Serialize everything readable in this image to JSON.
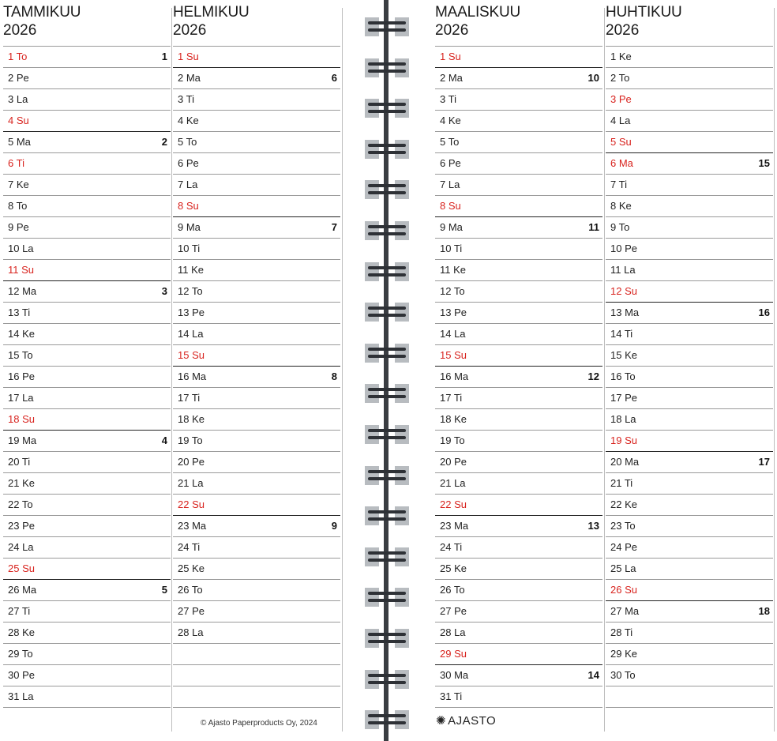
{
  "months": [
    {
      "name": "TAMMIKUU",
      "year": "2026",
      "days": [
        {
          "label": "1 To",
          "red": true,
          "week": "1"
        },
        {
          "label": "2 Pe"
        },
        {
          "label": "3 La"
        },
        {
          "label": "4 Su",
          "red": true
        },
        {
          "label": "5 Ma",
          "week": "2",
          "start": true
        },
        {
          "label": "6 Ti",
          "red": true
        },
        {
          "label": "7 Ke"
        },
        {
          "label": "8 To"
        },
        {
          "label": "9 Pe"
        },
        {
          "label": "10 La"
        },
        {
          "label": "11 Su",
          "red": true
        },
        {
          "label": "12 Ma",
          "week": "3",
          "start": true
        },
        {
          "label": "13 Ti"
        },
        {
          "label": "14 Ke"
        },
        {
          "label": "15 To"
        },
        {
          "label": "16 Pe"
        },
        {
          "label": "17 La"
        },
        {
          "label": "18 Su",
          "red": true
        },
        {
          "label": "19 Ma",
          "week": "4",
          "start": true
        },
        {
          "label": "20 Ti"
        },
        {
          "label": "21 Ke"
        },
        {
          "label": "22 To"
        },
        {
          "label": "23 Pe"
        },
        {
          "label": "24 La"
        },
        {
          "label": "25 Su",
          "red": true
        },
        {
          "label": "26 Ma",
          "week": "5",
          "start": true
        },
        {
          "label": "27 Ti"
        },
        {
          "label": "28 Ke"
        },
        {
          "label": "29 To"
        },
        {
          "label": "30 Pe"
        },
        {
          "label": "31 La"
        }
      ]
    },
    {
      "name": "HELMIKUU",
      "year": "2026",
      "days": [
        {
          "label": "1 Su",
          "red": true
        },
        {
          "label": "2 Ma",
          "week": "6",
          "start": true
        },
        {
          "label": "3 Ti"
        },
        {
          "label": "4 Ke"
        },
        {
          "label": "5 To"
        },
        {
          "label": "6 Pe"
        },
        {
          "label": "7 La"
        },
        {
          "label": "8 Su",
          "red": true
        },
        {
          "label": "9 Ma",
          "week": "7",
          "start": true
        },
        {
          "label": "10 Ti"
        },
        {
          "label": "11 Ke"
        },
        {
          "label": "12 To"
        },
        {
          "label": "13 Pe"
        },
        {
          "label": "14 La"
        },
        {
          "label": "15 Su",
          "red": true
        },
        {
          "label": "16 Ma",
          "week": "8",
          "start": true
        },
        {
          "label": "17 Ti"
        },
        {
          "label": "18 Ke"
        },
        {
          "label": "19 To"
        },
        {
          "label": "20 Pe"
        },
        {
          "label": "21 La"
        },
        {
          "label": "22 Su",
          "red": true
        },
        {
          "label": "23 Ma",
          "week": "9",
          "start": true
        },
        {
          "label": "24 Ti"
        },
        {
          "label": "25 Ke"
        },
        {
          "label": "26 To"
        },
        {
          "label": "27 Pe"
        },
        {
          "label": "28 La"
        },
        {
          "label": ""
        },
        {
          "label": ""
        },
        {
          "label": ""
        }
      ]
    },
    {
      "name": "MAALISKUU",
      "year": "2026",
      "days": [
        {
          "label": "1 Su",
          "red": true
        },
        {
          "label": "2 Ma",
          "week": "10",
          "start": true
        },
        {
          "label": "3 Ti"
        },
        {
          "label": "4 Ke"
        },
        {
          "label": "5 To"
        },
        {
          "label": "6 Pe"
        },
        {
          "label": "7 La"
        },
        {
          "label": "8 Su",
          "red": true
        },
        {
          "label": "9 Ma",
          "week": "11",
          "start": true
        },
        {
          "label": "10 Ti"
        },
        {
          "label": "11 Ke"
        },
        {
          "label": "12 To"
        },
        {
          "label": "13 Pe"
        },
        {
          "label": "14 La"
        },
        {
          "label": "15 Su",
          "red": true
        },
        {
          "label": "16 Ma",
          "week": "12",
          "start": true
        },
        {
          "label": "17 Ti"
        },
        {
          "label": "18 Ke"
        },
        {
          "label": "19 To"
        },
        {
          "label": "20 Pe"
        },
        {
          "label": "21 La"
        },
        {
          "label": "22 Su",
          "red": true
        },
        {
          "label": "23 Ma",
          "week": "13",
          "start": true
        },
        {
          "label": "24 Ti"
        },
        {
          "label": "25 Ke"
        },
        {
          "label": "26 To"
        },
        {
          "label": "27 Pe"
        },
        {
          "label": "28 La"
        },
        {
          "label": "29 Su",
          "red": true
        },
        {
          "label": "30 Ma",
          "week": "14",
          "start": true
        },
        {
          "label": "31 Ti"
        }
      ]
    },
    {
      "name": "HUHTIKUU",
      "year": "2026",
      "days": [
        {
          "label": "1 Ke"
        },
        {
          "label": "2 To"
        },
        {
          "label": "3 Pe",
          "red": true
        },
        {
          "label": "4 La"
        },
        {
          "label": "5 Su",
          "red": true
        },
        {
          "label": "6 Ma",
          "red": true,
          "week": "15",
          "start": true
        },
        {
          "label": "7 Ti"
        },
        {
          "label": "8 Ke"
        },
        {
          "label": "9 To"
        },
        {
          "label": "10 Pe"
        },
        {
          "label": "11 La"
        },
        {
          "label": "12 Su",
          "red": true
        },
        {
          "label": "13 Ma",
          "week": "16",
          "start": true
        },
        {
          "label": "14 Ti"
        },
        {
          "label": "15 Ke"
        },
        {
          "label": "16 To"
        },
        {
          "label": "17 Pe"
        },
        {
          "label": "18 La"
        },
        {
          "label": "19 Su",
          "red": true
        },
        {
          "label": "20 Ma",
          "week": "17",
          "start": true
        },
        {
          "label": "21 Ti"
        },
        {
          "label": "22 Ke"
        },
        {
          "label": "23 To"
        },
        {
          "label": "24 Pe"
        },
        {
          "label": "25 La"
        },
        {
          "label": "26 Su",
          "red": true
        },
        {
          "label": "27 Ma",
          "week": "18",
          "start": true
        },
        {
          "label": "28 Ti"
        },
        {
          "label": "29 Ke"
        },
        {
          "label": "30 To"
        },
        {
          "label": ""
        }
      ]
    }
  ],
  "footer": {
    "copyright": "© Ajasto Paperproducts Oy, 2024",
    "brand": "AJASTO",
    "brand_icon": "sun-star-icon"
  },
  "colors": {
    "holiday_red": "#d8231e",
    "spine": "#3a3d42",
    "ring": "#b8bcc0"
  }
}
